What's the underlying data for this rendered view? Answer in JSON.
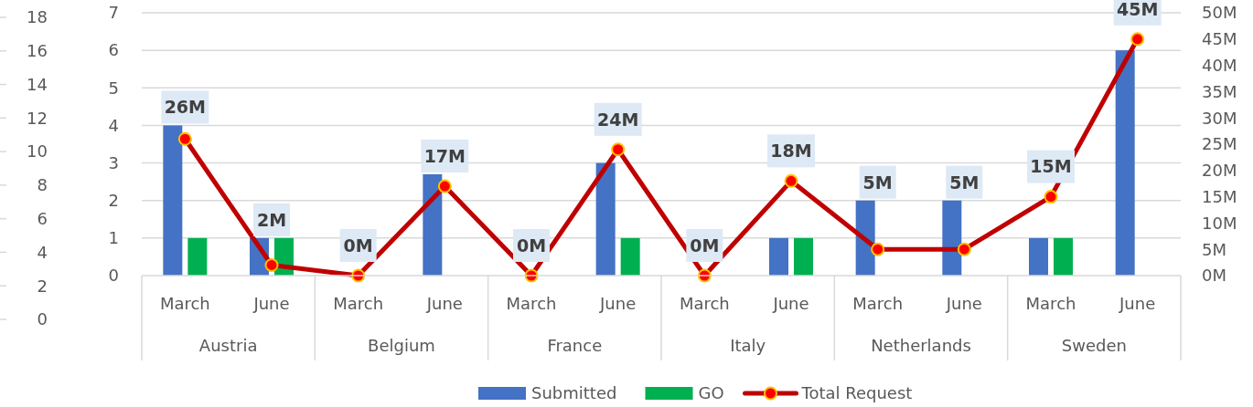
{
  "chart_data": {
    "type": "bar",
    "categories": [
      "March",
      "June",
      "March",
      "June",
      "March",
      "June",
      "March",
      "June",
      "March",
      "June",
      "March",
      "June"
    ],
    "annotations": [
      "Austria",
      "Belgium",
      "France",
      "Italy",
      "Netherlands",
      "Sweden"
    ],
    "series": [
      {
        "name": "Submitted",
        "color": "#4472c4",
        "values": [
          4,
          1,
          0,
          2.7,
          0,
          3,
          0,
          1,
          2,
          2,
          1,
          6
        ]
      },
      {
        "name": "GO",
        "color": "#00b050",
        "values": [
          1,
          1,
          0,
          0,
          0,
          1,
          0,
          1,
          0,
          0,
          1,
          0
        ]
      },
      {
        "name": "Total Request",
        "type": "line",
        "axis": "y2",
        "color": "#c00000",
        "values": [
          26,
          2,
          0,
          17,
          0,
          24,
          0,
          18,
          5,
          5,
          15,
          45
        ],
        "value_labels": [
          "26M",
          "2M",
          "0M",
          "17M",
          "0M",
          "24M",
          "0M",
          "18M",
          "5M",
          "5M",
          "15M",
          "45M"
        ]
      }
    ],
    "ylim": [
      0,
      7
    ],
    "yticks": [
      0,
      1,
      2,
      3,
      4,
      5,
      6,
      7
    ],
    "y2lim": [
      0,
      50
    ],
    "y2ticks": [
      {
        "value": 0,
        "label": "0M"
      },
      {
        "value": 5,
        "label": "5M"
      },
      {
        "value": 10,
        "label": "10M"
      },
      {
        "value": 15,
        "label": "15M"
      },
      {
        "value": 20,
        "label": "20M"
      },
      {
        "value": 25,
        "label": "25M"
      },
      {
        "value": 30,
        "label": "30M"
      },
      {
        "value": 35,
        "label": "35M"
      },
      {
        "value": 40,
        "label": "40M"
      },
      {
        "value": 45,
        "label": "45M"
      },
      {
        "value": 50,
        "label": "50M"
      }
    ],
    "y3lim": [
      0,
      18
    ],
    "y3ticks": [
      0,
      2,
      4,
      6,
      8,
      10,
      12,
      14,
      16,
      18
    ],
    "grid": "y",
    "legend": "bottom",
    "marker": "circle"
  }
}
